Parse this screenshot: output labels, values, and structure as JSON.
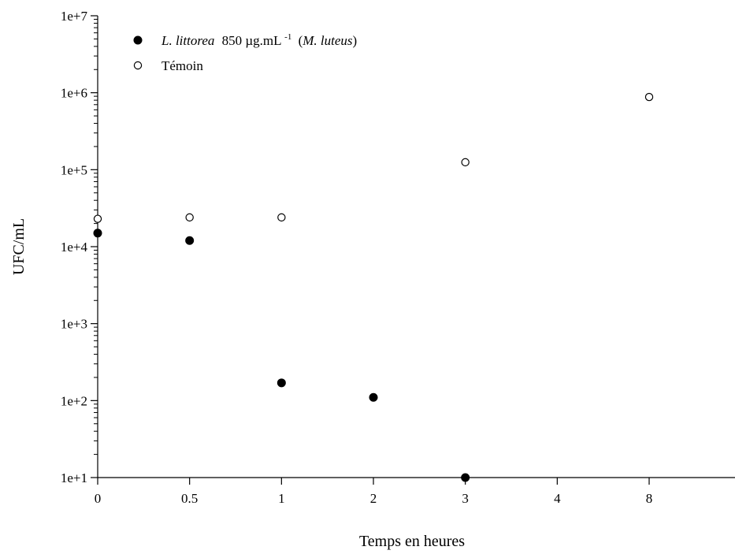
{
  "chart_data": {
    "type": "scatter",
    "title": "",
    "xlabel": "Temps en heures",
    "ylabel": "UFC/mL",
    "yscale": "log",
    "ylim": [
      10,
      10000000
    ],
    "x_categories": [
      "0",
      "0.5",
      "1",
      "2",
      "3",
      "4",
      "8"
    ],
    "y_tick_labels": [
      "1e+1",
      "1e+2",
      "1e+3",
      "1e+4",
      "1e+5",
      "1e+6",
      "1e+7"
    ],
    "grid": false,
    "legend_position": "top-left",
    "series": [
      {
        "legend": {
          "species": "L. littorea",
          "dose": "850 µg.mL",
          "exponent": "-1",
          "open_paren": "(",
          "organism": "M. luteus",
          "close_paren": ")"
        },
        "marker": "filled-circle",
        "color": "#000000",
        "points": [
          {
            "x": "0",
            "y": 15000
          },
          {
            "x": "0.5",
            "y": 12000
          },
          {
            "x": "1",
            "y": 170
          },
          {
            "x": "2",
            "y": 110
          },
          {
            "x": "3",
            "y": 10
          }
        ]
      },
      {
        "name": "Témoin",
        "marker": "open-circle",
        "color": "#000000",
        "points": [
          {
            "x": "0",
            "y": 23000
          },
          {
            "x": "0.5",
            "y": 24000
          },
          {
            "x": "1",
            "y": 24000
          },
          {
            "x": "3",
            "y": 125000
          },
          {
            "x": "8",
            "y": 880000
          }
        ]
      }
    ]
  }
}
